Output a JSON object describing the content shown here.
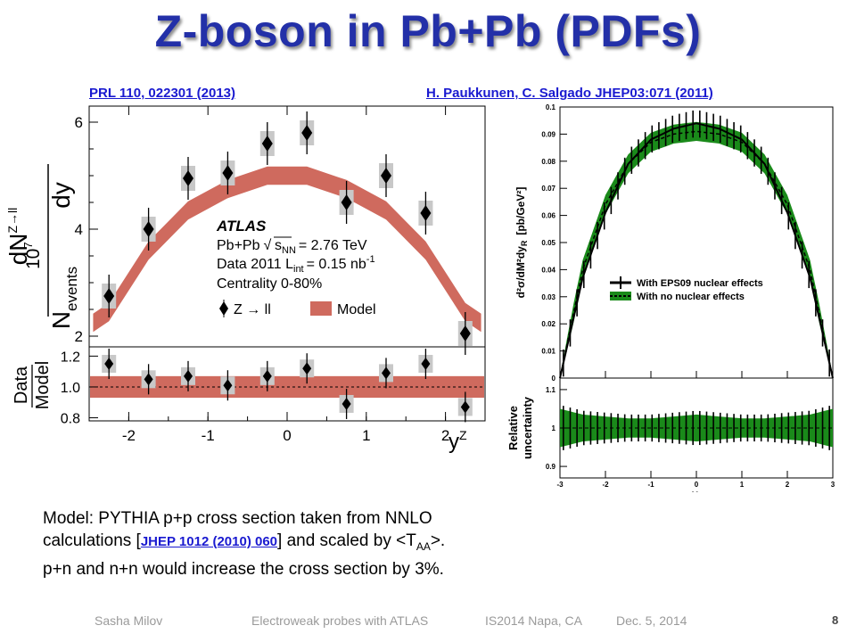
{
  "slide": {
    "title": "Z-boson in Pb+Pb (PDFs)",
    "ref_left": "PRL 110, 022301 (2013)",
    "ref_right": "H. Paukkunen, C. Salgado JHEP03:071 (2011)",
    "body_line1": "Model: PYTHIA p+p cross section taken from NNLO",
    "body_line2_pre": "calculations [",
    "body_line2_link": "JHEP 1012 (2010) 060",
    "body_line2_post": "] and scaled by <T",
    "body_line2_sub": "AA",
    "body_line2_end": ">.",
    "body_line3": "p+n and n+n would increase the cross section by 3%.",
    "footer_author": "Sasha Milov",
    "footer_talk": "Electroweak probes with ATLAS",
    "footer_conf": "IS2014 Napa, CA",
    "footer_date": "Dec. 5, 2014",
    "page_number": "8"
  },
  "colors": {
    "title": "#2330a8",
    "link": "#1a1ad0",
    "model_band": "#cf6a5e",
    "syst_box": "#c8c8c8",
    "green_band": "#1a8a1a"
  },
  "left_plot": {
    "ylabel_factor": "10",
    "ylabel_factor_exp": "7",
    "ylabel_num": "dN",
    "ylabel_num_sup": "Z→ll",
    "ylabel_num_den": "dy",
    "ylabel_den": "N",
    "ylabel_den_sub": "events",
    "ratio_label_num": "Data",
    "ratio_label_den": "Model",
    "xlabel": "y",
    "xlabel_sup": "Z",
    "legend_experiment": "ATLAS",
    "legend_system": "Pb+Pb",
    "legend_energy_sub": "NN",
    "legend_energy_value": "= 2.76 TeV",
    "legend_data": "Data 2011 L",
    "legend_data_sub": "int",
    "legend_lumi": "= 0.15 nb",
    "legend_lumi_sup": "-1",
    "legend_centrality": "Centrality 0-80%",
    "legend_series_data": "Z → ll",
    "legend_series_model": "Model",
    "yticks_top": [
      "2",
      "4",
      "6"
    ],
    "yticks_ratio": [
      "0.8",
      "1.0",
      "1.2"
    ],
    "xticks": [
      "-2",
      "-1",
      "0",
      "1",
      "2"
    ]
  },
  "right_plot": {
    "ylabel": "d²σ/dM²dy",
    "ylabel_sub": "R",
    "ylabel_unit": "[pb/GeV²]",
    "ratio_ylabel_1": "Relative",
    "ratio_ylabel_2": "uncertainty",
    "xlabel": "y",
    "xlabel_sub": "R",
    "legend_1": "With EPS09 nuclear effects",
    "legend_2": "With no nuclear effects",
    "yticks_top": [
      "0",
      "0.01",
      "0.02",
      "0.03",
      "0.04",
      "0.05",
      "0.06",
      "0.07",
      "0.08",
      "0.09",
      "0.1"
    ],
    "yticks_ratio": [
      "0.9",
      "1",
      "1.1"
    ],
    "xticks": [
      "-3",
      "-2",
      "-1",
      "0",
      "1",
      "2",
      "3"
    ]
  },
  "chart_data": [
    {
      "type": "scatter",
      "x": [
        -2.25,
        -1.75,
        -1.25,
        -0.75,
        -0.25,
        0.25,
        0.75,
        1.25,
        1.75,
        2.25
      ],
      "series": [
        {
          "name": "Z → ll",
          "values": [
            2.75,
            4.0,
            4.95,
            5.05,
            5.6,
            5.8,
            4.5,
            5.0,
            4.3,
            2.05
          ]
        },
        {
          "name": "Model",
          "values": [
            2.45,
            3.6,
            4.35,
            4.75,
            5.0,
            5.0,
            4.75,
            4.35,
            3.6,
            2.45
          ]
        }
      ],
      "ylim": [
        1.8,
        6.3
      ],
      "xlim": [
        -2.5,
        2.5
      ]
    },
    {
      "type": "scatter",
      "x": [
        -2.25,
        -1.75,
        -1.25,
        -0.75,
        -0.25,
        0.25,
        0.75,
        1.25,
        1.75,
        2.25
      ],
      "series": [
        {
          "name": "Data/Model",
          "values": [
            1.15,
            1.05,
            1.07,
            1.01,
            1.07,
            1.12,
            0.89,
            1.09,
            1.15,
            0.87
          ]
        }
      ],
      "ylim": [
        0.78,
        1.26
      ]
    },
    {
      "type": "line",
      "x": [
        -3,
        -2.5,
        -2,
        -1.5,
        -1,
        -0.5,
        0,
        0.5,
        1,
        1.5,
        2,
        2.5,
        3
      ],
      "series": [
        {
          "name": "With EPS09 nuclear effects",
          "values": [
            0.0,
            0.037,
            0.061,
            0.079,
            0.088,
            0.092,
            0.094,
            0.092,
            0.088,
            0.079,
            0.061,
            0.037,
            0.0
          ]
        },
        {
          "name": "With no nuclear effects",
          "values": [
            0.0,
            0.04,
            0.064,
            0.079,
            0.087,
            0.09,
            0.091,
            0.09,
            0.087,
            0.079,
            0.064,
            0.04,
            0.0
          ]
        }
      ],
      "ylim": [
        0,
        0.1
      ],
      "xlim": [
        -3,
        3
      ]
    },
    {
      "type": "area",
      "x": [
        -3,
        -2.5,
        -2,
        -1.5,
        -1,
        -0.5,
        0,
        0.5,
        1,
        1.5,
        2,
        2.5,
        3
      ],
      "series": [
        {
          "name": "With EPS09 nuclear effects",
          "values": [
            0.95,
            0.965,
            0.97,
            0.975,
            0.975,
            0.97,
            0.965,
            0.97,
            0.975,
            0.975,
            0.97,
            0.965,
            0.95
          ]
        },
        {
          "name": "With no nuclear effects",
          "values": [
            1.0,
            1.0,
            1.0,
            1.0,
            1.0,
            1.0,
            1.0,
            1.0,
            1.0,
            1.0,
            1.0,
            1.0,
            1.0
          ]
        }
      ],
      "ylim": [
        0.87,
        1.13
      ]
    }
  ]
}
